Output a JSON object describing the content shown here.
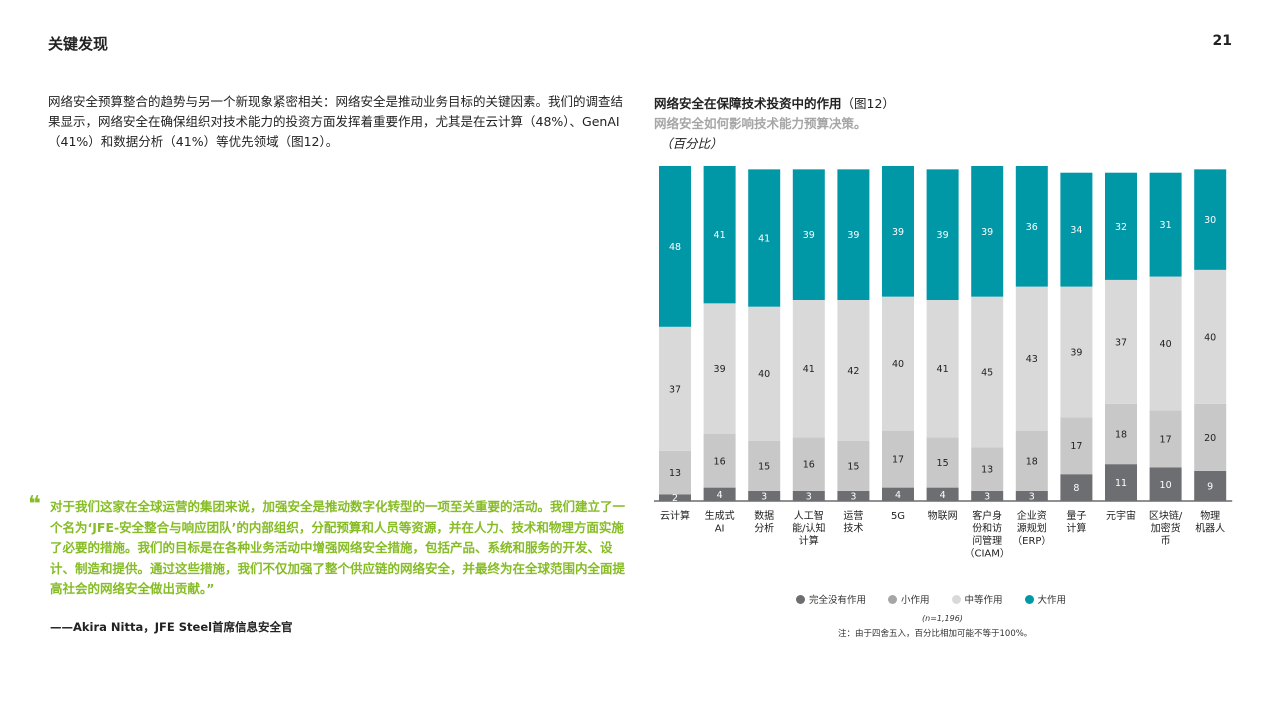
{
  "header": {
    "title": "关键发现",
    "page_number": "21"
  },
  "body_text": "网络安全预算整合的趋势与另一个新现象紧密相关：网络安全是推动业务目标的关键因素。我们的调查结果显示，网络安全在确保组织对技术能力的投资方面发挥着重要作用，尤其是在云计算（48%）、GenAI（41%）和数据分析（41%）等优先领域（图12）。",
  "quote": {
    "mark": "❝",
    "text": "对于我们这家在全球运营的集团来说，加强安全是推动数字化转型的一项至关重要的活动。我们建立了一个名为‘JFE-安全整合与响应团队’的内部组织，分配预算和人员等资源，并在人力、技术和物理方面实施了必要的措施。我们的目标是在各种业务活动中增强网络安全措施，包括产品、系统和服务的开发、设计、制造和提供。通过这些措施，我们不仅加强了整个供应链的网络安全，并最终为在全球范围内全面提高社会的网络安全做出贡献。”",
    "author": "——Akira Nitta，JFE Steel首席信息安全官"
  },
  "chart_data": {
    "type": "bar",
    "stacked": true,
    "title": "网络安全在保障技术投资中的作用",
    "title_ref": "（图12）",
    "subtitle": "网络安全如何影响技术能力预算决策。",
    "unit": "（百分比）",
    "categories": [
      "云计算",
      "生成式\nAI",
      "数据\n分析",
      "人工智\n能/认知\n计算",
      "运营\n技术",
      "5G",
      "物联网",
      "客户身\n份和访\n问管理\n（CIAM）",
      "企业资\n源规划\n（ERP）",
      "量子\n计算",
      "元宇宙",
      "区块链/\n加密货\n币",
      "物理\n机器人"
    ],
    "series": [
      {
        "name": "完全没有作用",
        "color": "#6d6e71",
        "values": [
          2,
          4,
          3,
          3,
          3,
          4,
          4,
          3,
          3,
          8,
          11,
          10,
          9
        ]
      },
      {
        "name": "小作用",
        "color": "#c8c8c8",
        "values": [
          13,
          16,
          15,
          16,
          15,
          17,
          15,
          13,
          18,
          17,
          18,
          17,
          20
        ]
      },
      {
        "name": "中等作用",
        "color": "#d9d9d9",
        "values": [
          37,
          39,
          40,
          41,
          42,
          40,
          41,
          45,
          43,
          39,
          37,
          40,
          40
        ]
      },
      {
        "name": "大作用",
        "color": "#0097a7",
        "values": [
          48,
          41,
          41,
          39,
          39,
          39,
          39,
          39,
          36,
          34,
          32,
          31,
          30
        ]
      }
    ],
    "ylim": [
      0,
      100
    ],
    "grid": false,
    "legend_position": "bottom",
    "sample_size": "(n=1,196)",
    "note": "注：由于四舍五入，百分比相加可能不等于100%。"
  }
}
